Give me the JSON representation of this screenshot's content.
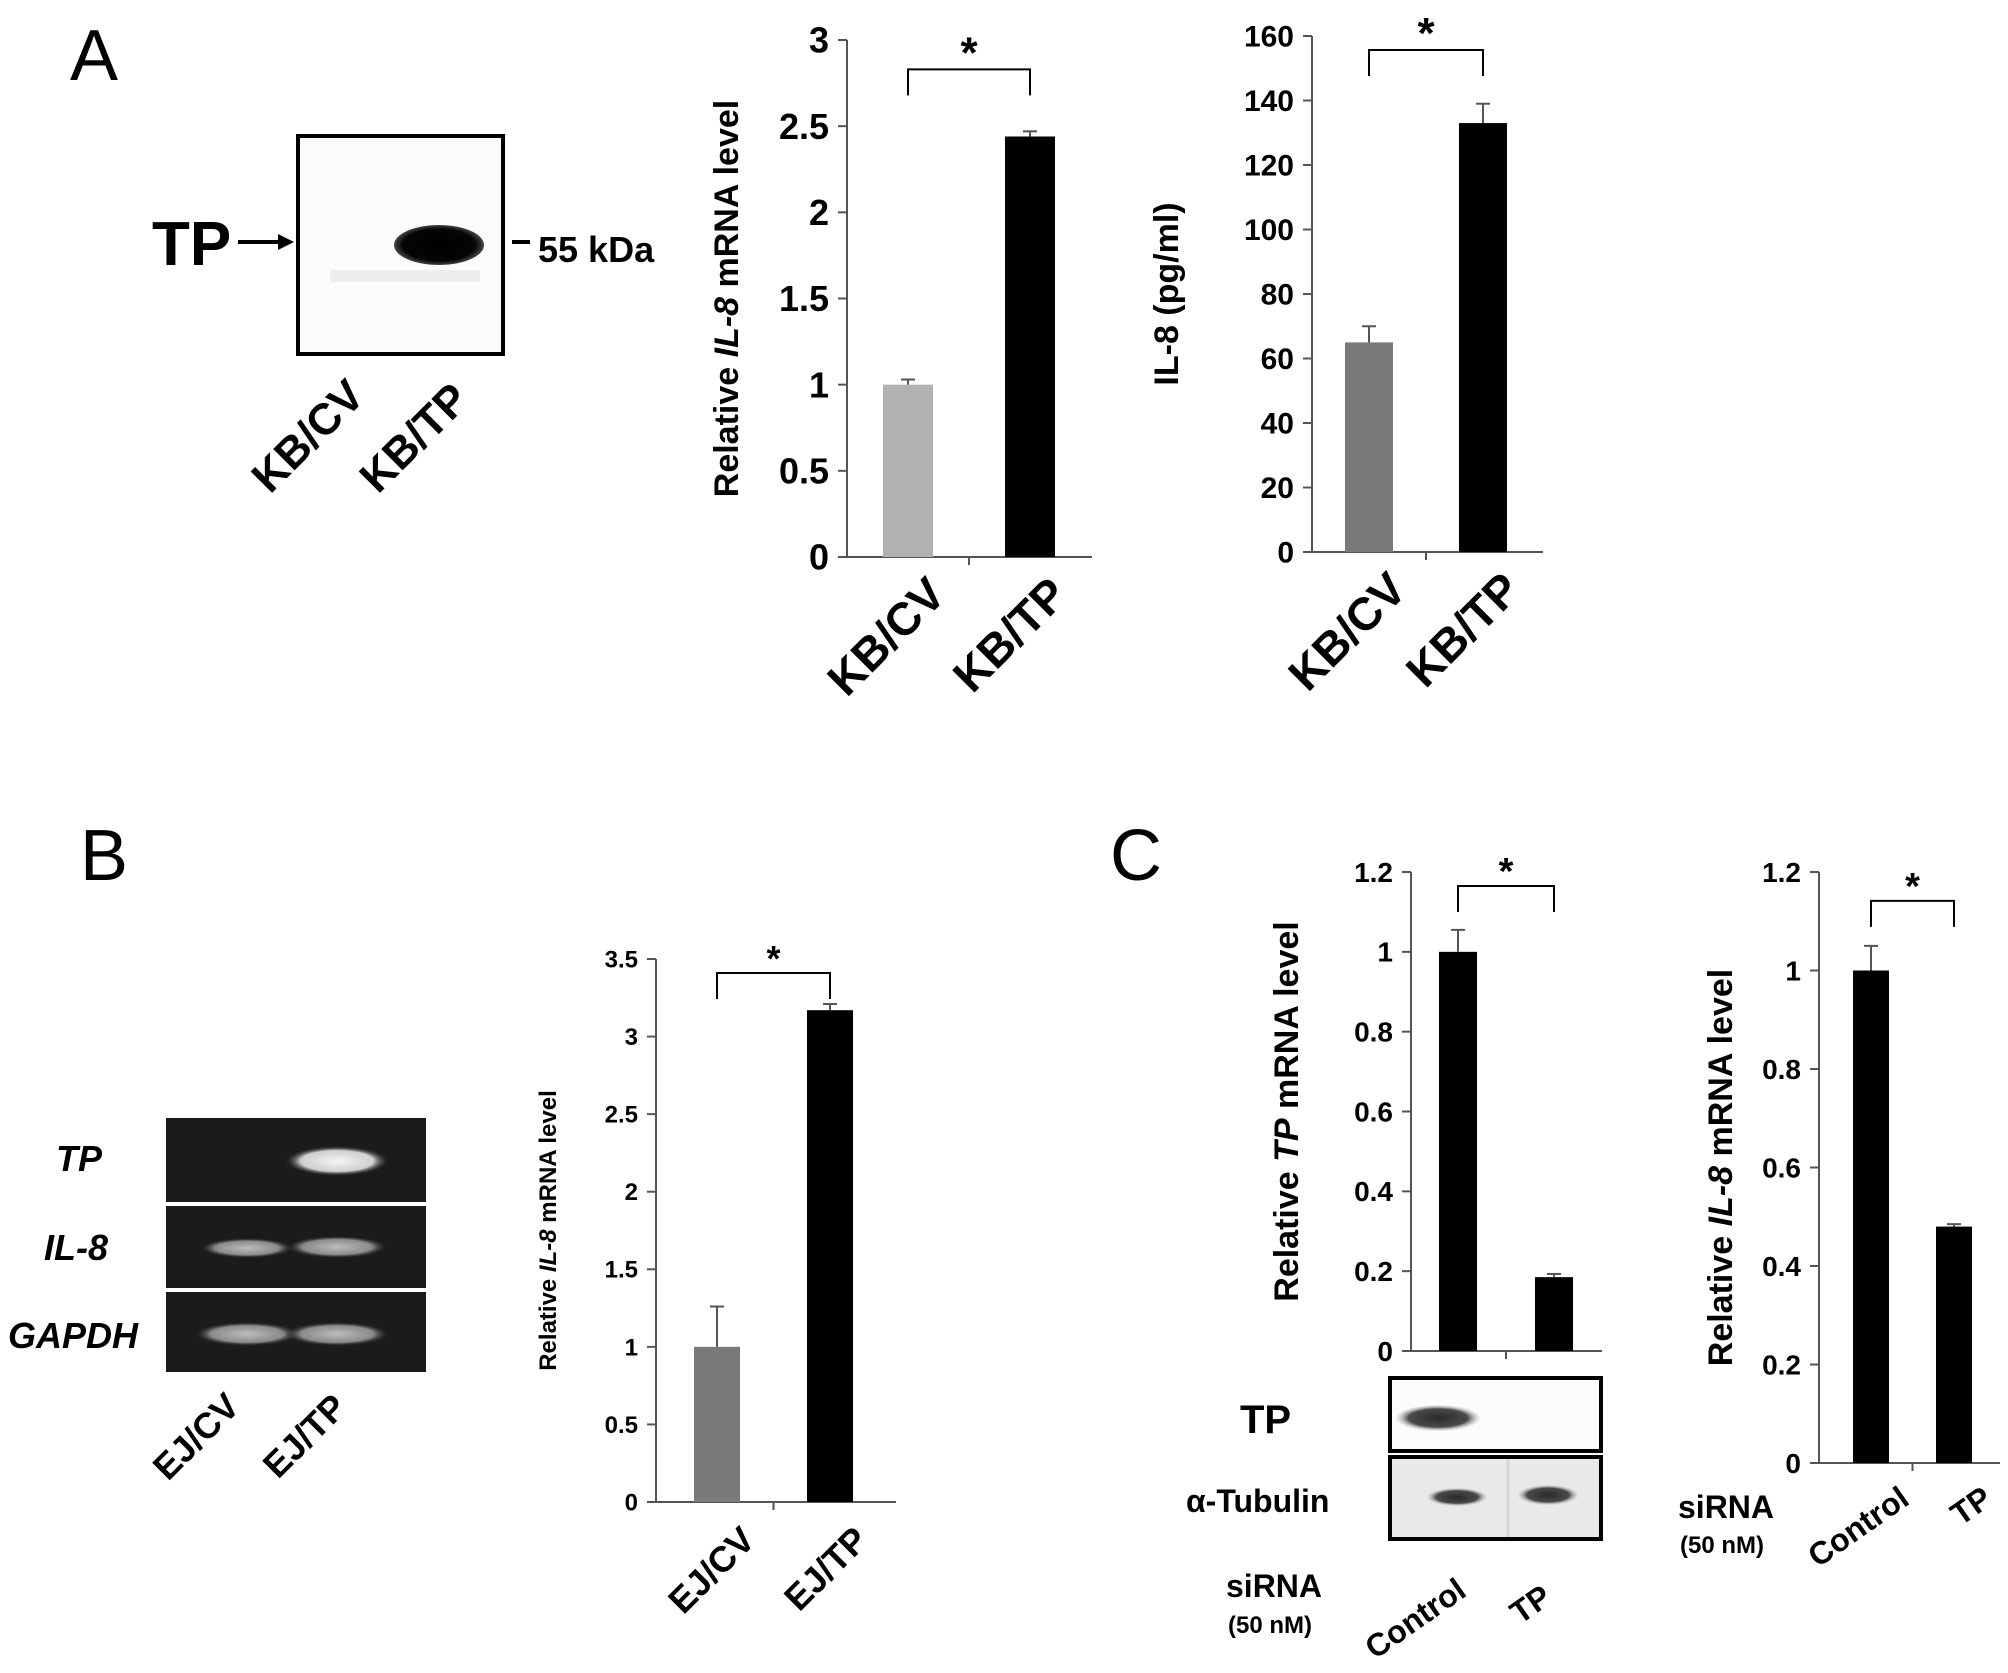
{
  "panels": {
    "a": {
      "letter": "A",
      "blot": {
        "band_label": "TP",
        "size_label": "55 kDa",
        "lanes": [
          "KB/CV",
          "KB/TP"
        ]
      }
    },
    "b": {
      "letter": "B",
      "gel": {
        "rows": [
          "TP",
          "IL-8",
          "GAPDH"
        ],
        "lanes": [
          "EJ/CV",
          "EJ/TP"
        ]
      }
    },
    "c": {
      "letter": "C",
      "blot": {
        "rows": [
          "TP",
          "α-Tubulin"
        ],
        "treatment": "siRNA",
        "dose": "(50 nM)",
        "lanes": [
          "Control",
          "TP"
        ]
      },
      "right_treatment": "siRNA",
      "right_dose": "(50 nM)"
    }
  },
  "chart_data": [
    {
      "type": "bar",
      "panel": "A",
      "categories": [
        "KB/CV",
        "KB/TP"
      ],
      "values": [
        1.0,
        2.44
      ],
      "errors": [
        0.03,
        0.03
      ],
      "bar_colors": [
        "#b2b2b2",
        "#000000"
      ],
      "ylabel": {
        "prefix": "Relative ",
        "gene": "IL-8",
        "suffix": " mRNA level"
      },
      "ylim": [
        0,
        3
      ],
      "yticks": [
        "0",
        "0.5",
        "1",
        "1.5",
        "2",
        "2.5",
        "3"
      ],
      "significance": "*"
    },
    {
      "type": "bar",
      "panel": "A",
      "categories": [
        "KB/CV",
        "KB/TP"
      ],
      "values": [
        65,
        133
      ],
      "errors": [
        5,
        6
      ],
      "bar_colors": [
        "#7a7a7a",
        "#000000"
      ],
      "ylabel": {
        "prefix": "IL-8 (pg/ml)",
        "gene": "",
        "suffix": ""
      },
      "ylim": [
        0,
        160
      ],
      "yticks": [
        "0",
        "20",
        "40",
        "60",
        "80",
        "100",
        "120",
        "140",
        "160"
      ],
      "significance": "*"
    },
    {
      "type": "bar",
      "panel": "B",
      "categories": [
        "EJ/CV",
        "EJ/TP"
      ],
      "values": [
        1.0,
        3.17
      ],
      "errors": [
        0.26,
        0.04
      ],
      "bar_colors": [
        "#7a7a7a",
        "#000000"
      ],
      "ylabel": {
        "prefix": "Relative ",
        "gene": "IL-8",
        "suffix": " mRNA level"
      },
      "ylim": [
        0,
        3.5
      ],
      "yticks": [
        "0",
        "0.5",
        "1",
        "1.5",
        "2",
        "2.5",
        "3",
        "3.5"
      ],
      "significance": "*"
    },
    {
      "type": "bar",
      "panel": "C",
      "categories": [
        "Control",
        "TP"
      ],
      "values": [
        1.0,
        0.185
      ],
      "errors": [
        0.055,
        0.008
      ],
      "bar_colors": [
        "#000000",
        "#000000"
      ],
      "ylabel": {
        "prefix": "Relative ",
        "gene": "TP",
        "suffix": " mRNA level"
      },
      "ylim": [
        0,
        1.2
      ],
      "yticks": [
        "0",
        "0.2",
        "0.4",
        "0.6",
        "0.8",
        "1",
        "1.2"
      ],
      "significance": "*"
    },
    {
      "type": "bar",
      "panel": "C",
      "categories": [
        "Control",
        "TP"
      ],
      "values": [
        1.0,
        0.48
      ],
      "errors": [
        0.05,
        0.005
      ],
      "bar_colors": [
        "#000000",
        "#000000"
      ],
      "ylabel": {
        "prefix": "Relative ",
        "gene": "IL-8",
        "suffix": " mRNA level"
      },
      "ylim": [
        0,
        1.2
      ],
      "yticks": [
        "0",
        "0.2",
        "0.4",
        "0.6",
        "0.8",
        "1",
        "1.2"
      ],
      "significance": "*"
    }
  ]
}
